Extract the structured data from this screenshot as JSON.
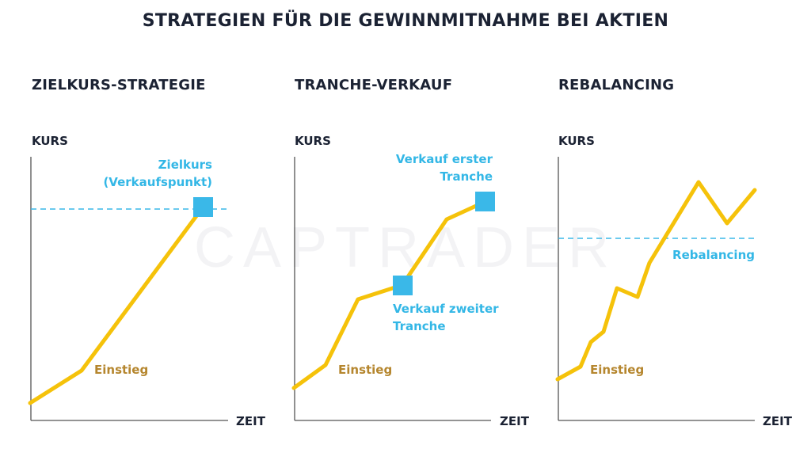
{
  "title": "STRATEGIEN FÜR DIE GEWINNMITNAHME BEI AKTIEN",
  "watermark": "CAPTRADER",
  "colors": {
    "line": "#f5c20a",
    "marker": "#3ab8e8",
    "label_yellow": "#b5862e",
    "label_blue": "#33b7e6",
    "text": "#1b2233",
    "axis": "#555555"
  },
  "panels": [
    {
      "title": "ZIELKURS-STRATEGIE",
      "y_axis": "KURS",
      "x_axis": "ZEIT",
      "entry_label": "Einstieg",
      "marker_label_lines": [
        "Zielkurs",
        "(Verkaufspunkt)"
      ],
      "reference_line": "Zielkurs"
    },
    {
      "title": "TRANCHE-VERKAUF",
      "y_axis": "KURS",
      "x_axis": "ZEIT",
      "entry_label": "Einstieg",
      "marker1_label_lines": [
        "Verkauf erster",
        "Tranche"
      ],
      "marker2_label_lines": [
        "Verkauf zweiter",
        "Tranche"
      ]
    },
    {
      "title": "REBALANCING",
      "y_axis": "KURS",
      "x_axis": "ZEIT",
      "entry_label": "Einstieg",
      "reference_label": "Rebalancing"
    }
  ]
}
